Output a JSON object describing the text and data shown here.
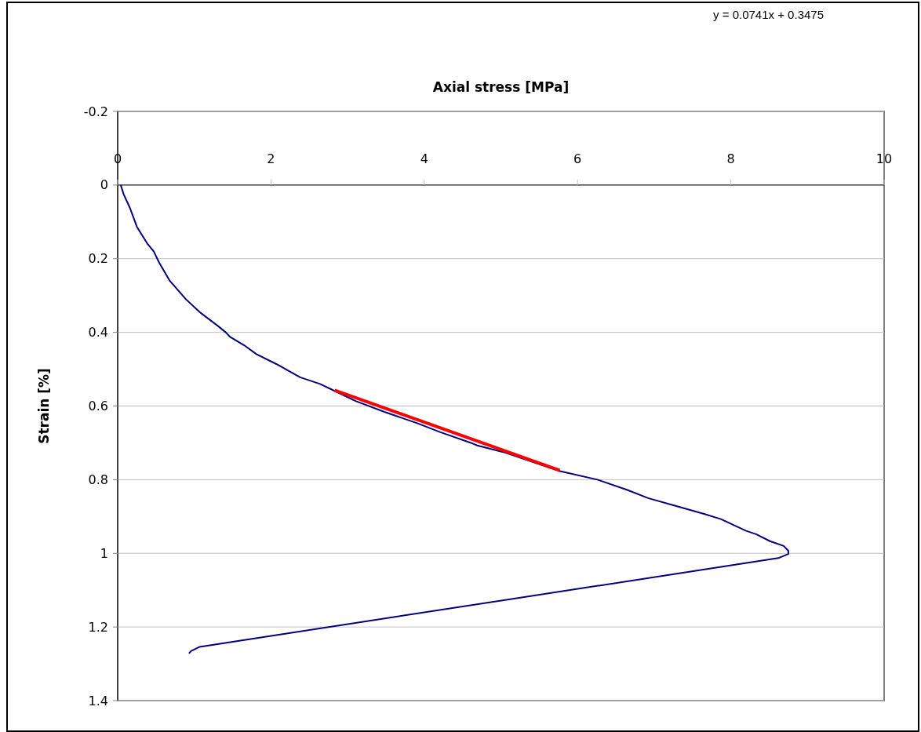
{
  "chart_data": {
    "type": "line",
    "title": "Axial stress [MPa]",
    "ylabel": "Strain [%]",
    "annotations": [
      "y = 0.0741x + 0.3475"
    ],
    "xlim": [
      0,
      10
    ],
    "xticks": [
      0,
      2,
      4,
      6,
      8,
      10
    ],
    "ylim": [
      1.4,
      -0.2
    ],
    "yticks": [
      -0.2,
      0,
      0.2,
      0.4,
      0.6,
      0.8,
      1,
      1.2,
      1.4
    ],
    "grid": "y",
    "marker": "none",
    "line_style": "solid",
    "series": [
      {
        "color": "#000080",
        "x": [
          0.04,
          0.08,
          0.16,
          0.25,
          0.39,
          0.47,
          0.54,
          0.68,
          0.89,
          1.07,
          1.31,
          1.41,
          1.47,
          1.65,
          1.81,
          2.07,
          2.38,
          2.64,
          2.83,
          3.11,
          3.48,
          3.9,
          4.21,
          4.61,
          4.69,
          5.03,
          5.77,
          6.26,
          6.65,
          6.92,
          7.26,
          7.65,
          7.87,
          8.2,
          8.33,
          8.51,
          8.69,
          8.75,
          8.75,
          8.62,
          1.07,
          0.96,
          0.93
        ],
        "values": [
          0,
          0.026,
          0.062,
          0.113,
          0.16,
          0.18,
          0.21,
          0.26,
          0.31,
          0.345,
          0.383,
          0.4,
          0.413,
          0.435,
          0.459,
          0.486,
          0.522,
          0.54,
          0.559,
          0.587,
          0.616,
          0.646,
          0.671,
          0.7,
          0.707,
          0.725,
          0.777,
          0.8,
          0.828,
          0.85,
          0.87,
          0.893,
          0.907,
          0.939,
          0.948,
          0.967,
          0.98,
          0.993,
          1.002,
          1.013,
          1.254,
          1.265,
          1.272
        ]
      },
      {
        "color": "#ff0000",
        "x": [
          2.83,
          5.77
        ],
        "values": [
          0.557,
          0.775
        ]
      }
    ]
  }
}
